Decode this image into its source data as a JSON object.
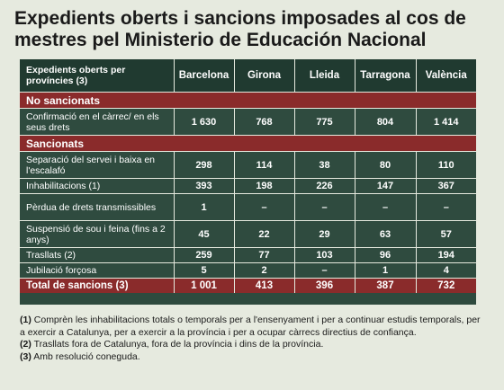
{
  "title": "Expedients oberts i sancions imposades al cos de mestres pel Ministerio de Educación Nacional",
  "table": {
    "header_label": "Expedients oberts per províncies (3)",
    "columns": [
      "Barcelona",
      "Girona",
      "Lleida",
      "Tarragona",
      "València"
    ],
    "section_no": "No sancionats",
    "row_confirmacio": {
      "label": "Confirmació en el càrrec/ en els seus drets",
      "values": [
        "1 630",
        "768",
        "775",
        "804",
        "1 414"
      ]
    },
    "section_yes": "Sancionats",
    "rows": [
      {
        "label": "Separació del servei i baixa en l'escalafó",
        "values": [
          "298",
          "114",
          "38",
          "80",
          "110"
        ]
      },
      {
        "label": "Inhabilitacions (1)",
        "values": [
          "393",
          "198",
          "226",
          "147",
          "367"
        ]
      },
      {
        "label": "Pèrdua de drets transmissibles",
        "values": [
          "1",
          "–",
          "–",
          "–",
          "–"
        ]
      },
      {
        "label": "Suspensió de sou i feina (fins a 2 anys)",
        "values": [
          "45",
          "22",
          "29",
          "63",
          "57"
        ]
      },
      {
        "label": "Trasllats (2)",
        "values": [
          "259",
          "77",
          "103",
          "96",
          "194"
        ]
      },
      {
        "label": "Jubilació forçosa",
        "values": [
          "5",
          "2",
          "–",
          "1",
          "4"
        ]
      }
    ],
    "total": {
      "label": "Total de sancions (3)",
      "values": [
        "1 001",
        "413",
        "396",
        "387",
        "732"
      ]
    }
  },
  "notes": [
    {
      "mark": "(1)",
      "text": "Comprèn les inhabilitacions totals o temporals per a l'ensenyament i per a continuar estudis temporals, per a exercir a Catalunya, per a exercir a la província i per a ocupar càrrecs directius de confiança."
    },
    {
      "mark": "(2)",
      "text": "Trasllats fora de Catalunya, fora de la província i dins de la província."
    },
    {
      "mark": "(3)",
      "text": "Amb resolució coneguda."
    }
  ]
}
